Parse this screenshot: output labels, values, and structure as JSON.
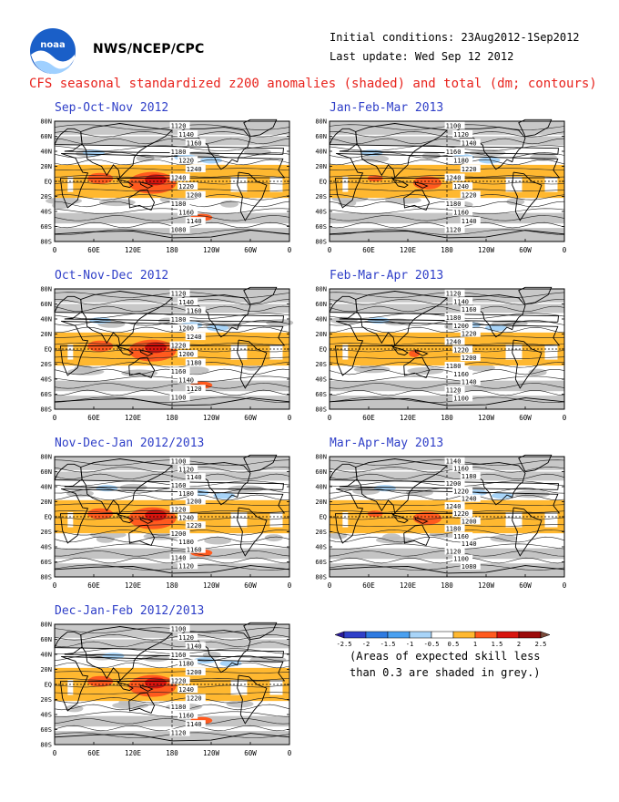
{
  "header": {
    "org": "NWS/NCEP/CPC",
    "initial_conditions": "Initial conditions: 23Aug2012-1Sep2012",
    "last_update": "Last update: Wed Sep 12 2012",
    "title": "CFS seasonal standardized z200 anomalies (shaded) and total (dm; contours)"
  },
  "axes": {
    "lat_labels": [
      "80N",
      "60N",
      "40N",
      "20N",
      "EQ",
      "20S",
      "40S",
      "60S",
      "80S"
    ],
    "lon_labels": [
      "0",
      "60E",
      "120E",
      "180",
      "120W",
      "60W",
      "0"
    ]
  },
  "panels": [
    {
      "title": "Sep-Oct-Nov 2012",
      "contours": [
        "1120",
        "1140",
        "1160",
        "1180",
        "1220",
        "1240",
        "1240",
        "1220",
        "1200",
        "1180",
        "1160",
        "1140",
        "1080"
      ],
      "anomaly_level": "strong"
    },
    {
      "title": "Jan-Feb-Mar 2013",
      "contours": [
        "1100",
        "1120",
        "1140",
        "1160",
        "1180",
        "1220",
        "1240",
        "1240",
        "1220",
        "1180",
        "1160",
        "1140",
        "1120"
      ],
      "anomaly_level": "moderate"
    },
    {
      "title": "Oct-Nov-Dec 2012",
      "contours": [
        "1120",
        "1140",
        "1160",
        "1180",
        "1200",
        "1240",
        "1220",
        "1200",
        "1180",
        "1160",
        "1140",
        "1120",
        "1100"
      ],
      "anomaly_level": "strong"
    },
    {
      "title": "Feb-Mar-Apr 2013",
      "contours": [
        "1120",
        "1140",
        "1160",
        "1180",
        "1200",
        "1220",
        "1240",
        "1220",
        "1200",
        "1180",
        "1160",
        "1140",
        "1120",
        "1100"
      ],
      "anomaly_level": "weak"
    },
    {
      "title": "Nov-Dec-Jan 2012/2013",
      "contours": [
        "1100",
        "1120",
        "1140",
        "1160",
        "1180",
        "1200",
        "1220",
        "1240",
        "1220",
        "1200",
        "1180",
        "1160",
        "1140",
        "1120"
      ],
      "anomaly_level": "strong"
    },
    {
      "title": "Mar-Apr-May 2013",
      "contours": [
        "1140",
        "1160",
        "1180",
        "1200",
        "1220",
        "1240",
        "1240",
        "1220",
        "1200",
        "1180",
        "1160",
        "1140",
        "1120",
        "1100",
        "1080"
      ],
      "anomaly_level": "moderate"
    },
    {
      "title": "Dec-Jan-Feb 2012/2013",
      "contours": [
        "1100",
        "1120",
        "1140",
        "1160",
        "1180",
        "1200",
        "1220",
        "1240",
        "1220",
        "1180",
        "1160",
        "1140",
        "1120"
      ],
      "anomaly_level": "strong"
    }
  ],
  "legend": {
    "labels": [
      "-2.5",
      "-2",
      "-1.5",
      "-1",
      "-0.5",
      "0.5",
      "1",
      "1.5",
      "2",
      "2.5"
    ],
    "colors": [
      "#2a1a9a",
      "#2f3fc8",
      "#2e7ae0",
      "#4aa0f0",
      "#a8d4f8",
      "#ffffff",
      "#ffb830",
      "#ff5a1e",
      "#d8140e",
      "#9c0a0a",
      "#7a4a3a"
    ],
    "note_line1": "(Areas of expected skill less",
    "note_line2": "than 0.3 are shaded in grey.)"
  }
}
